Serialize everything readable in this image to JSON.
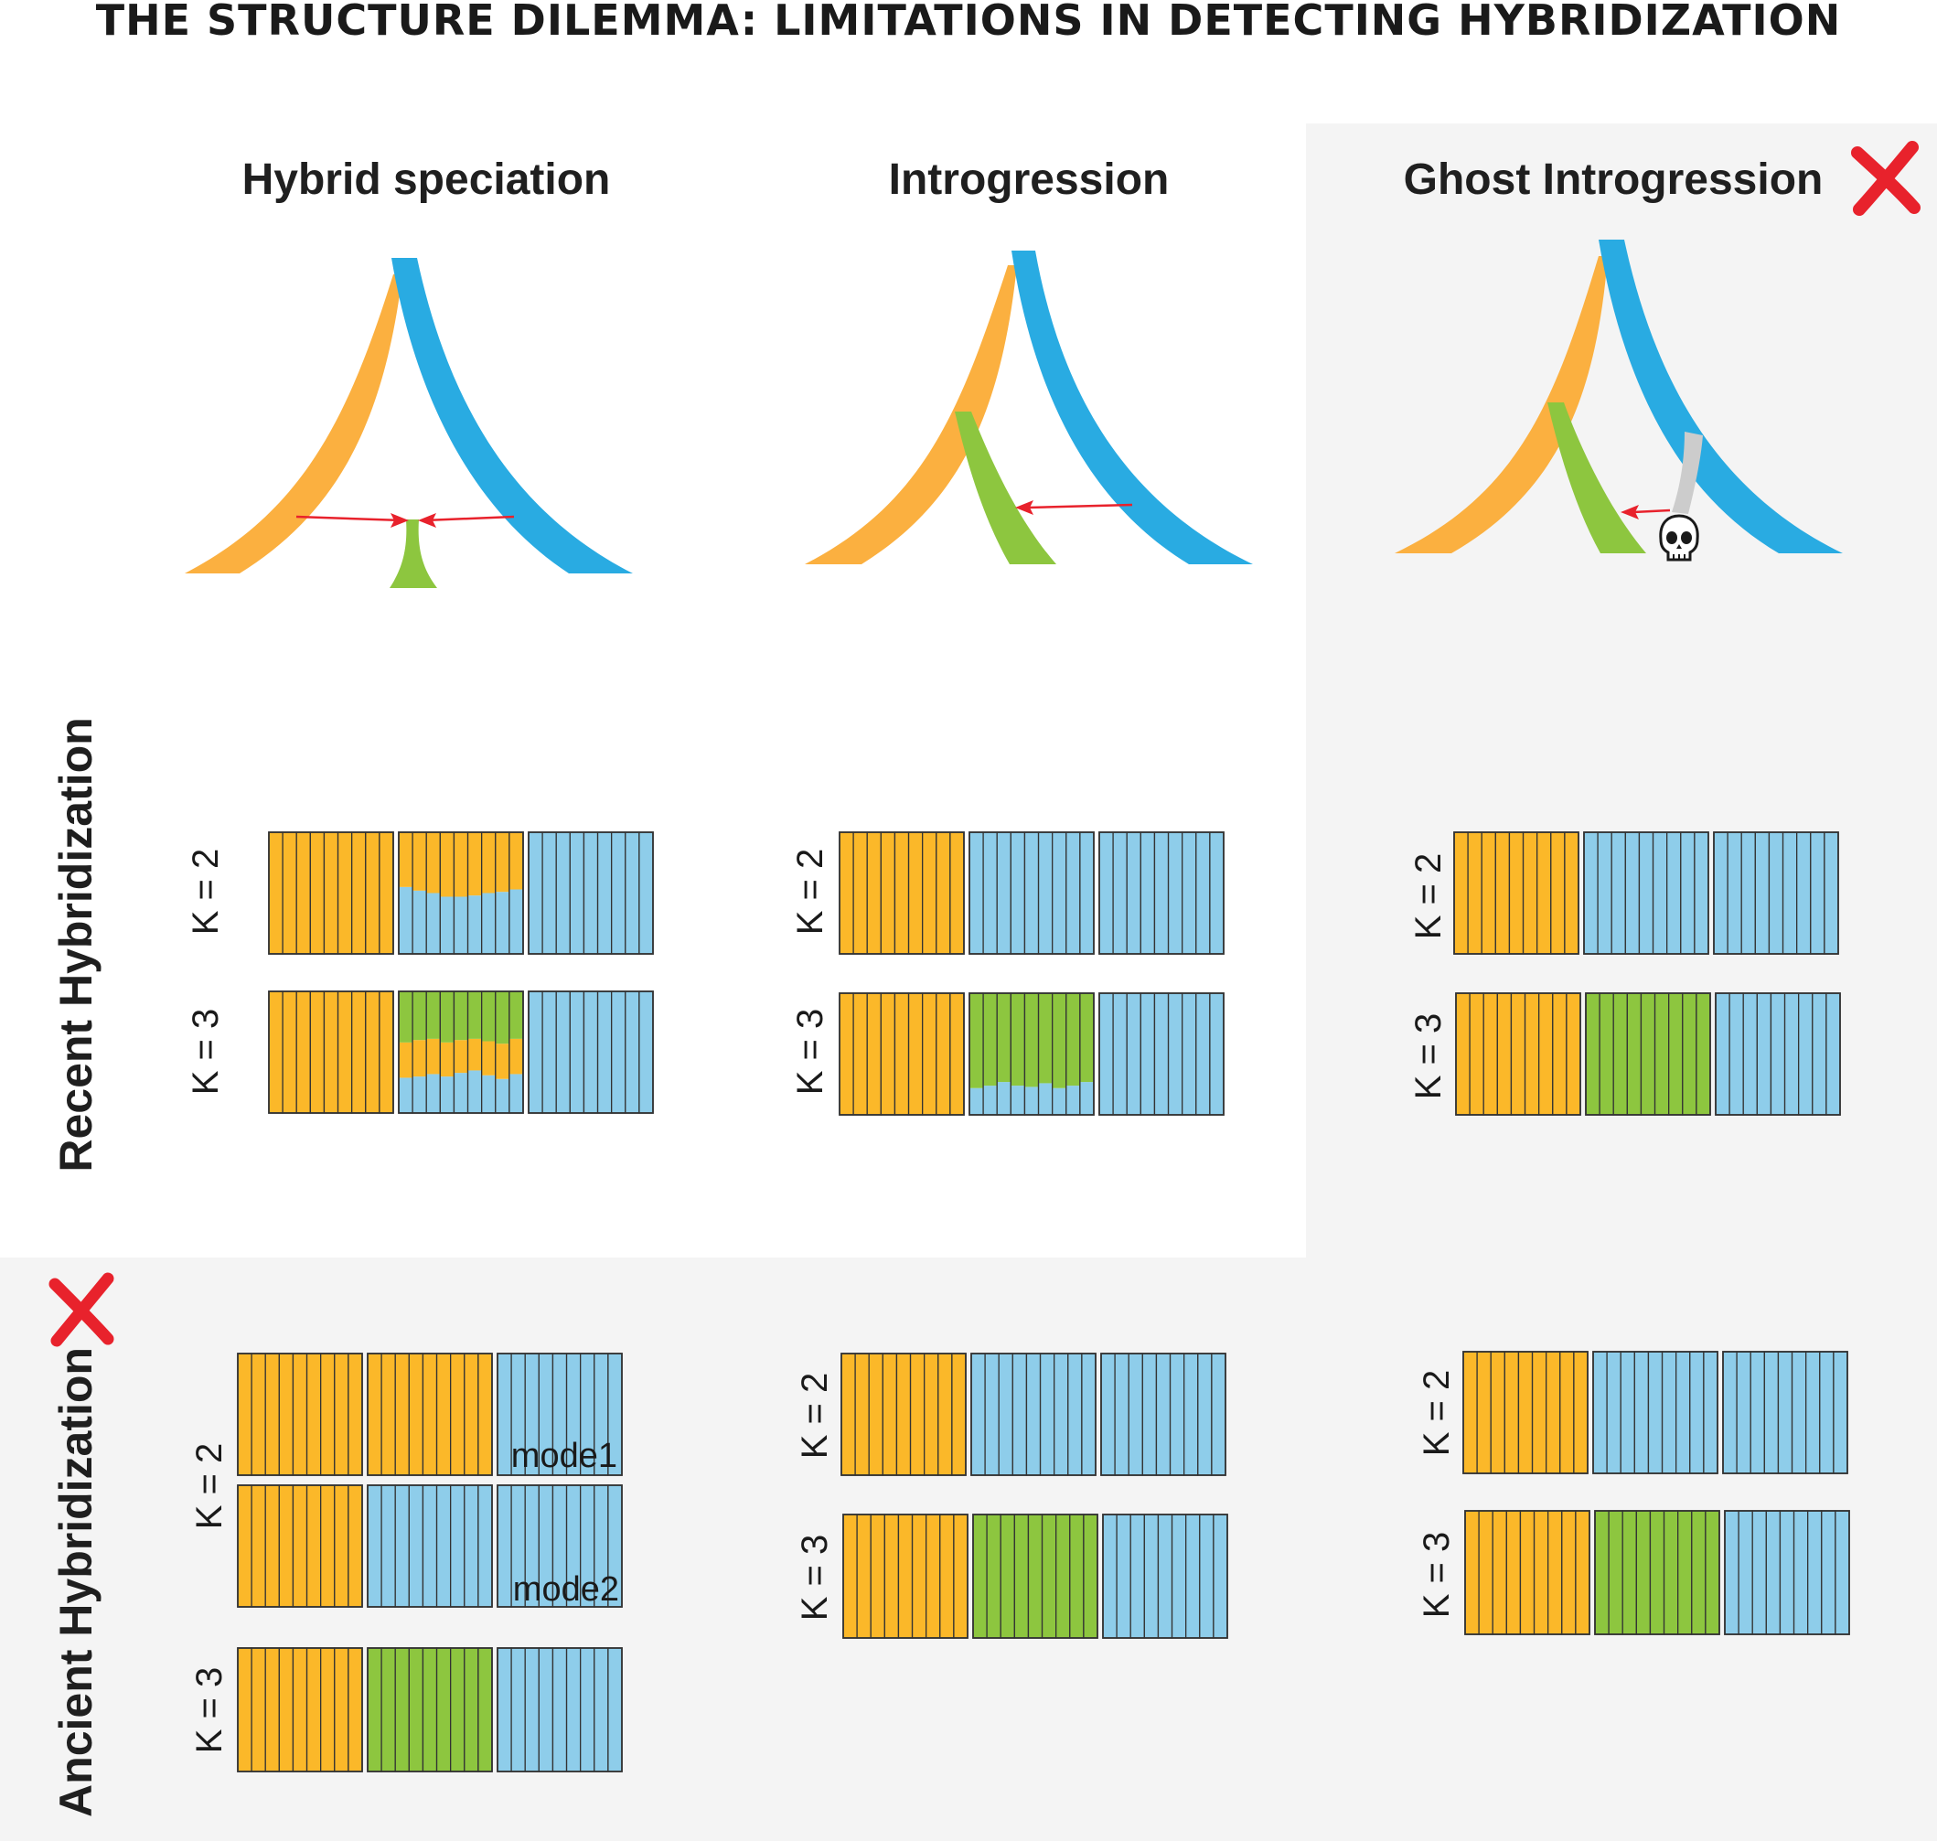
{
  "title": "The Structure Dilemma: Limitations in Detecting Hybridization",
  "columns": [
    {
      "id": "hybrid",
      "label": "Hybrid speciation",
      "crossed": false
    },
    {
      "id": "introgression",
      "label": "Introgression",
      "crossed": false
    },
    {
      "id": "ghost",
      "label": "Ghost Introgression",
      "crossed": true
    }
  ],
  "rows": [
    {
      "id": "recent",
      "label": "Recent Hybridization",
      "crossed": false
    },
    {
      "id": "ancient",
      "label": "Ancient Hybridization",
      "crossed": true
    }
  ],
  "colors": {
    "orange": "#FBB829",
    "blue": "#8ECDEA",
    "green": "#8DC63F",
    "lineage_orange": "#FBB040",
    "lineage_blue": "#29ABE2",
    "lineage_green": "#8DC63F",
    "ghost_lineage": "#CCCCCC",
    "arrow": "#E8222C",
    "shaded_bg": "#F4F4F4"
  },
  "icons": {
    "extinct": "skull-icon",
    "cross": "red-x-icon"
  },
  "structure_plots": {
    "recent": {
      "hybrid": [
        {
          "k": "K = 2",
          "blocks": [
            "orange",
            "admix2",
            "blue"
          ]
        },
        {
          "k": "K = 3",
          "blocks": [
            "orange",
            "admix3",
            "blue"
          ]
        }
      ],
      "introgression": [
        {
          "k": "K = 2",
          "blocks": [
            "orange",
            "blue",
            "blue"
          ]
        },
        {
          "k": "K = 3",
          "blocks": [
            "orange",
            "green_blue",
            "blue"
          ]
        }
      ],
      "ghost": [
        {
          "k": "K = 2",
          "blocks": [
            "orange",
            "blue",
            "blue"
          ]
        },
        {
          "k": "K = 3",
          "blocks": [
            "orange",
            "green",
            "blue"
          ]
        }
      ]
    },
    "ancient": {
      "hybrid": {
        "k2_label": "K = 2",
        "modes": [
          {
            "label": "mode1",
            "blocks": [
              "orange",
              "orange",
              "blue"
            ]
          },
          {
            "label": "mode2",
            "blocks": [
              "orange",
              "blue",
              "blue"
            ]
          }
        ],
        "k3": {
          "k": "K = 3",
          "blocks": [
            "orange",
            "green",
            "blue"
          ]
        }
      },
      "introgression": [
        {
          "k": "K = 2",
          "blocks": [
            "orange",
            "blue",
            "blue"
          ]
        },
        {
          "k": "K = 3",
          "blocks": [
            "orange",
            "green",
            "blue"
          ]
        }
      ],
      "ghost": [
        {
          "k": "K = 2",
          "blocks": [
            "orange",
            "blue",
            "blue"
          ]
        },
        {
          "k": "K = 3",
          "blocks": [
            "orange",
            "green",
            "blue"
          ]
        }
      ]
    }
  }
}
